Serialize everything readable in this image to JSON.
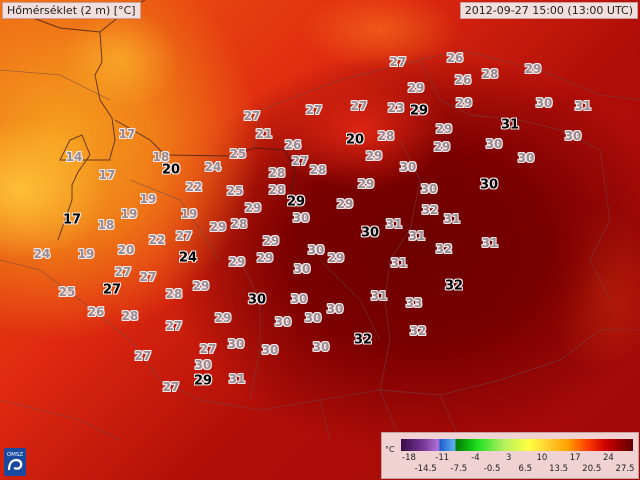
{
  "title": "Hőmérséklet (2 m) [°C]",
  "timestamp": "2012-09-27 15:00 (13:00 UTC)",
  "logo_text": "OMSZ",
  "legend": {
    "unit": "°C",
    "ticks": [
      "-18",
      "-14.5",
      "-11",
      "-7.5",
      "-4",
      "-0.5",
      "3",
      "6.5",
      "10",
      "13.5",
      "17",
      "20.5",
      "24",
      "27.5"
    ],
    "colors": [
      "#3a0a4a",
      "#b070d8",
      "#2060d0",
      "#008000",
      "#20e020",
      "#ffff40",
      "#ffa000",
      "#ff4000",
      "#d00000",
      "#600000"
    ]
  },
  "stations": [
    {
      "v": "17"
    },
    {
      "v": "14"
    },
    {
      "v": "17"
    },
    {
      "v": "18"
    },
    {
      "v": "24"
    },
    {
      "v": "25"
    },
    {
      "v": "27"
    },
    {
      "v": "21"
    },
    {
      "v": "26"
    },
    {
      "v": "27"
    },
    {
      "v": "28"
    },
    {
      "v": "28"
    },
    {
      "v": "28"
    },
    {
      "v": "22"
    },
    {
      "v": "25"
    },
    {
      "v": "19"
    },
    {
      "v": "19"
    },
    {
      "v": "18"
    },
    {
      "v": "19"
    },
    {
      "v": "22"
    },
    {
      "v": "20"
    },
    {
      "v": "27"
    },
    {
      "v": "29"
    },
    {
      "v": "28"
    },
    {
      "v": "29"
    },
    {
      "v": "30"
    },
    {
      "v": "29"
    },
    {
      "v": "24"
    },
    {
      "v": "19"
    },
    {
      "v": "27"
    },
    {
      "v": "27"
    },
    {
      "v": "29"
    },
    {
      "v": "29"
    },
    {
      "v": "29"
    },
    {
      "v": "30"
    },
    {
      "v": "30"
    },
    {
      "v": "29"
    },
    {
      "v": "25"
    },
    {
      "v": "26"
    },
    {
      "v": "28"
    },
    {
      "v": "28"
    },
    {
      "v": "29"
    },
    {
      "v": "27"
    },
    {
      "v": "29"
    },
    {
      "v": "30"
    },
    {
      "v": "27"
    },
    {
      "v": "27"
    },
    {
      "v": "30"
    },
    {
      "v": "27"
    },
    {
      "v": "31"
    },
    {
      "v": "30"
    },
    {
      "v": "30"
    },
    {
      "v": "30"
    },
    {
      "v": "30"
    },
    {
      "v": "30"
    },
    {
      "v": "30"
    },
    {
      "v": "31"
    },
    {
      "v": "33"
    },
    {
      "v": "32"
    },
    {
      "v": "31"
    },
    {
      "v": "31"
    },
    {
      "v": "32"
    },
    {
      "v": "31"
    },
    {
      "v": "31"
    },
    {
      "v": "27"
    },
    {
      "v": "26"
    },
    {
      "v": "26"
    },
    {
      "v": "28"
    },
    {
      "v": "29"
    },
    {
      "v": "27"
    },
    {
      "v": "27"
    },
    {
      "v": "23"
    },
    {
      "v": "29"
    },
    {
      "v": "29"
    },
    {
      "v": "29"
    },
    {
      "v": "29"
    },
    {
      "v": "30"
    },
    {
      "v": "31"
    },
    {
      "v": "30"
    },
    {
      "v": "28"
    },
    {
      "v": "29"
    },
    {
      "v": "29"
    },
    {
      "v": "30"
    },
    {
      "v": "30"
    },
    {
      "v": "30"
    },
    {
      "v": "30"
    },
    {
      "v": "32"
    },
    {
      "v": "31"
    },
    {
      "v": "20",
      "bold": true
    },
    {
      "v": "17",
      "bold": true
    },
    {
      "v": "29",
      "bold": true
    },
    {
      "v": "24",
      "bold": true
    },
    {
      "v": "27",
      "bold": true
    },
    {
      "v": "29",
      "bold": true
    },
    {
      "v": "20",
      "bold": true
    },
    {
      "v": "31",
      "bold": true
    },
    {
      "v": "30",
      "bold": true
    },
    {
      "v": "30",
      "bold": true
    },
    {
      "v": "30",
      "bold": true
    },
    {
      "v": "32",
      "bold": true
    },
    {
      "v": "32",
      "bold": true
    },
    {
      "v": "29",
      "bold": true
    }
  ]
}
